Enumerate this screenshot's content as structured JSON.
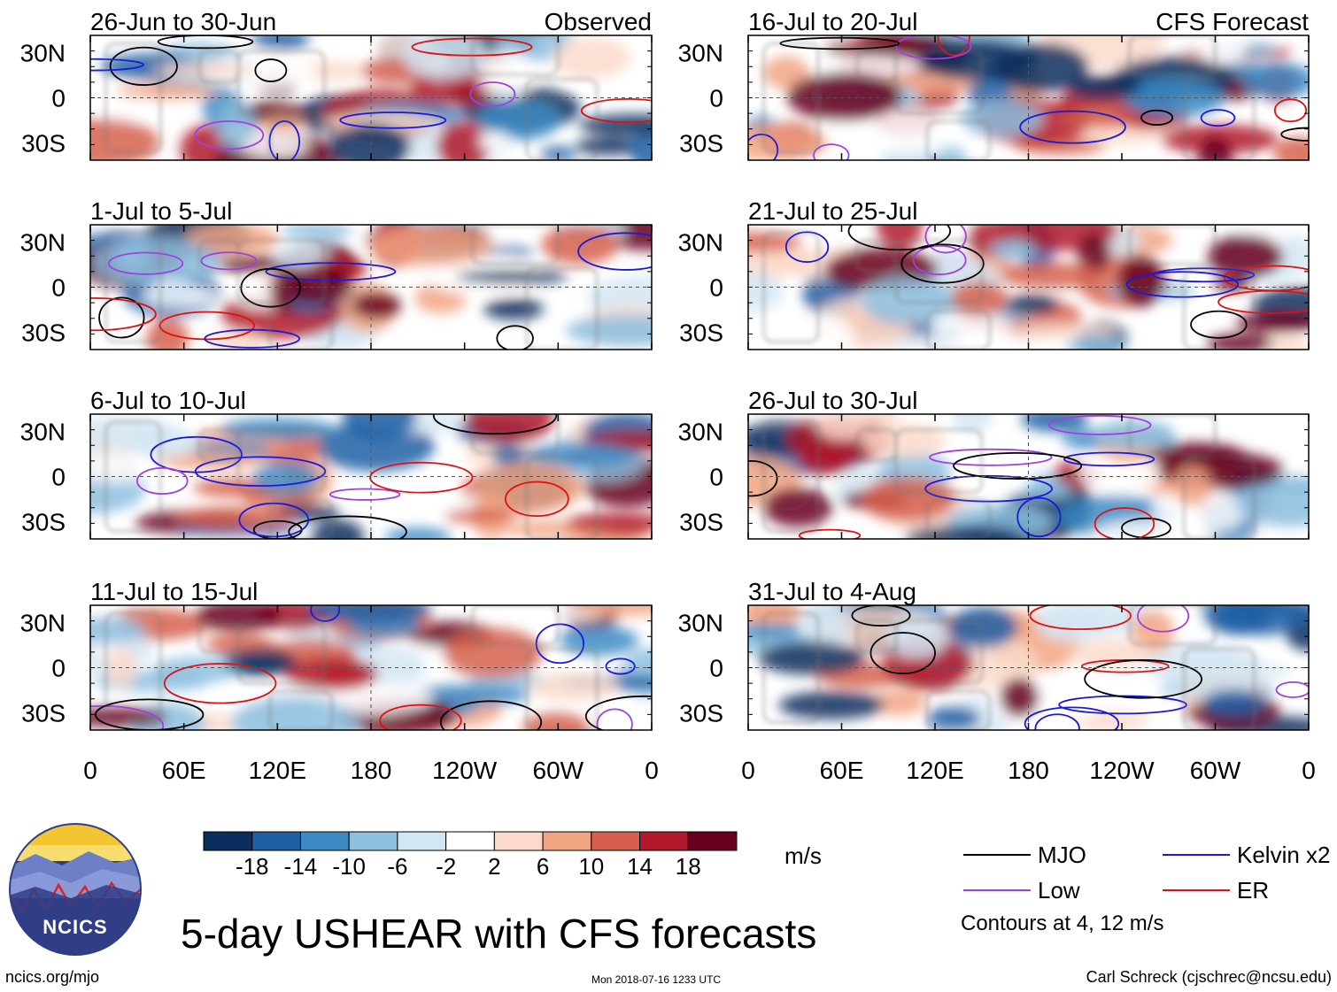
{
  "chart_data": {
    "type": "heatmap",
    "title": "5-day USHEAR with CFS forecasts",
    "column_labels": [
      "Observed",
      "CFS Forecast"
    ],
    "units": "m/s",
    "x_ticks": [
      "0",
      "60E",
      "120E",
      "180",
      "120W",
      "60W",
      "0"
    ],
    "y_ticks": [
      "30N",
      "0",
      "30S"
    ],
    "lat_range": [
      -40,
      40
    ],
    "lon_range": [
      0,
      360
    ],
    "colorbar": {
      "ticks": [
        "-18",
        "-14",
        "-10",
        "-6",
        "-2",
        "2",
        "6",
        "10",
        "14",
        "18"
      ],
      "colors": [
        "#0a2f5e",
        "#1f5fa6",
        "#3d8bc4",
        "#8dbfdf",
        "#d3e6f3",
        "#ffffff",
        "#fbdacb",
        "#f2a582",
        "#d6604d",
        "#b2182b",
        "#67001f"
      ]
    },
    "panels": [
      {
        "period": "26-Jun to 30-Jun",
        "source": "Observed"
      },
      {
        "period": "1-Jul to 5-Jul",
        "source": "Observed"
      },
      {
        "period": "6-Jul to 10-Jul",
        "source": "Observed"
      },
      {
        "period": "11-Jul to 15-Jul",
        "source": "Observed"
      },
      {
        "period": "16-Jul to 20-Jul",
        "source": "CFS Forecast"
      },
      {
        "period": "21-Jul to 25-Jul",
        "source": "CFS Forecast"
      },
      {
        "period": "26-Jul to 30-Jul",
        "source": "CFS Forecast"
      },
      {
        "period": "31-Jul to 4-Aug",
        "source": "CFS Forecast"
      }
    ],
    "legend": [
      {
        "label": "MJO",
        "color": "#000000"
      },
      {
        "label": "Kelvin x2",
        "color": "#1a1ad6"
      },
      {
        "label": "Low",
        "color": "#a040e0"
      },
      {
        "label": "ER",
        "color": "#e01010"
      }
    ],
    "contours_note": "Contours at 4, 12 m/s"
  },
  "footer": {
    "logo_text": "NCICS",
    "site": "ncics.org/mjo",
    "timestamp": "Mon 2018-07-16 1233 UTC",
    "author": "Carl Schreck (cjschrec@ncsu.edu)"
  }
}
